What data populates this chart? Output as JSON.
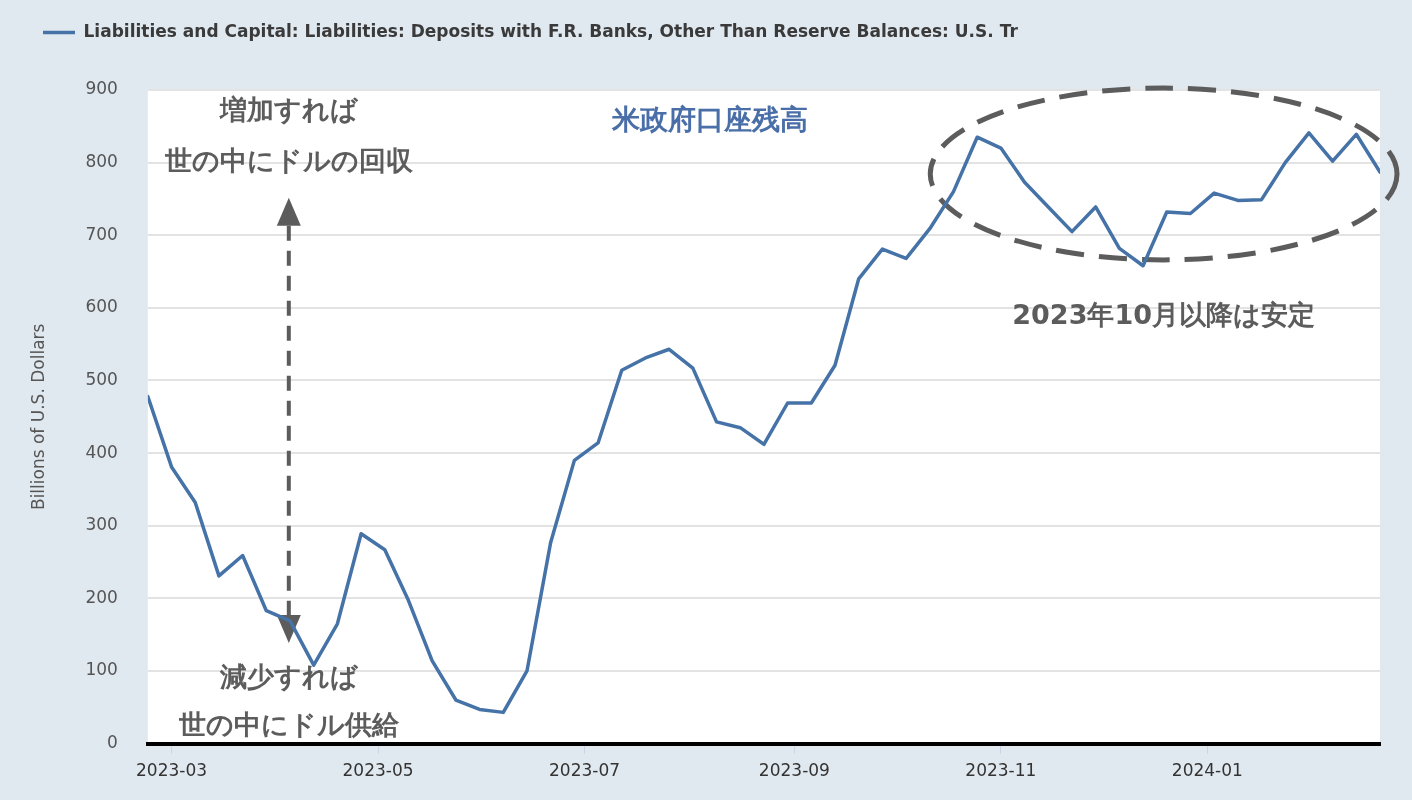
{
  "chart_data": {
    "type": "line",
    "title": "米政府口座残高",
    "ylabel": "Billions of U.S. Dollars",
    "x": [
      "2023-02-22",
      "2023-03-01",
      "2023-03-08",
      "2023-03-15",
      "2023-03-22",
      "2023-03-29",
      "2023-04-05",
      "2023-04-12",
      "2023-04-19",
      "2023-04-26",
      "2023-05-03",
      "2023-05-10",
      "2023-05-17",
      "2023-05-24",
      "2023-05-31",
      "2023-06-07",
      "2023-06-14",
      "2023-06-21",
      "2023-06-28",
      "2023-07-05",
      "2023-07-12",
      "2023-07-19",
      "2023-07-26",
      "2023-08-02",
      "2023-08-09",
      "2023-08-16",
      "2023-08-23",
      "2023-08-30",
      "2023-09-06",
      "2023-09-13",
      "2023-09-20",
      "2023-09-27",
      "2023-10-04",
      "2023-10-11",
      "2023-10-18",
      "2023-10-25",
      "2023-11-01",
      "2023-11-08",
      "2023-11-15",
      "2023-11-22",
      "2023-11-29",
      "2023-12-06",
      "2023-12-13",
      "2023-12-20",
      "2023-12-27",
      "2024-01-03",
      "2024-01-10",
      "2024-01-17",
      "2024-01-24",
      "2024-01-31",
      "2024-02-07",
      "2024-02-14",
      "2024-02-21"
    ],
    "series": [
      {
        "name": "Liabilities and Capital: Liabilities: Deposits with F.R. Banks, Other Than Reserve Balances: U.S. Tr",
        "color": "#4572a7",
        "values": [
          478,
          381,
          332,
          231,
          259,
          183,
          169,
          108,
          165,
          289,
          267,
          197,
          114,
          60,
          47,
          43,
          100,
          277,
          390,
          414,
          514,
          531,
          543,
          517,
          443,
          435,
          412,
          469,
          469,
          521,
          640,
          681,
          668,
          709,
          760,
          835,
          820,
          773,
          739,
          705,
          739,
          682,
          658,
          732,
          730,
          758,
          748,
          749,
          800,
          841,
          802,
          839,
          787
        ]
      }
    ],
    "xlim": [
      "2023-02-22",
      "2024-02-21"
    ],
    "xticks": [
      "2023-03",
      "2023-05",
      "2023-07",
      "2023-09",
      "2023-11",
      "2024-01"
    ],
    "ylim": [
      0,
      900
    ],
    "yticks": [
      0,
      100,
      200,
      300,
      400,
      500,
      600,
      700,
      800,
      900
    ],
    "grid": "y",
    "legend": "top left",
    "annotations": [
      "増加すれば",
      "世の中にドルの回収",
      "減少すれば",
      "世の中にドル供給",
      "2023年10月以降は安定"
    ]
  }
}
